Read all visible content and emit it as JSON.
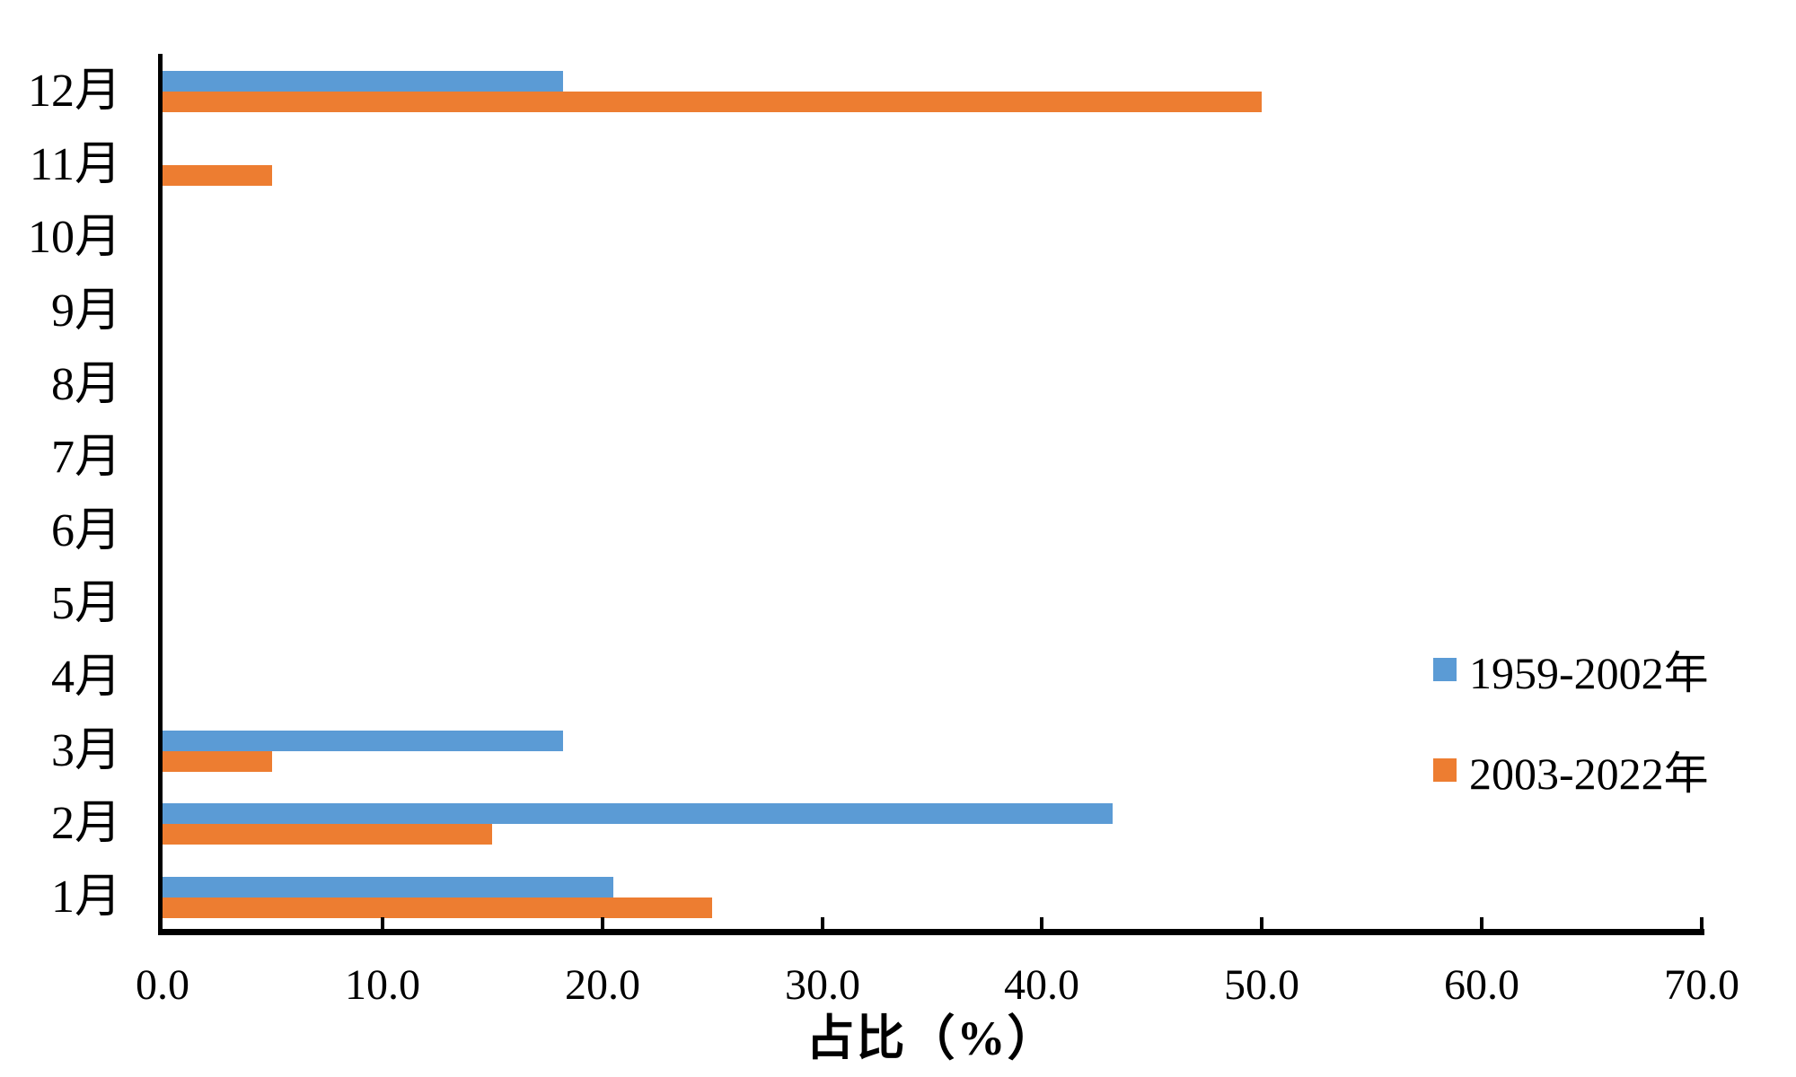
{
  "chart_data": {
    "type": "bar",
    "orientation": "horizontal",
    "title": "",
    "xlabel": "占比（%）",
    "ylabel": "",
    "xlim": [
      0,
      70
    ],
    "x_ticks": [
      "0.0",
      "10.0",
      "20.0",
      "30.0",
      "40.0",
      "50.0",
      "60.0",
      "70.0"
    ],
    "x_tick_values": [
      0,
      10,
      20,
      30,
      40,
      50,
      60,
      70
    ],
    "grid": false,
    "legend_position": "right-middle",
    "categories": [
      "1月",
      "2月",
      "3月",
      "4月",
      "5月",
      "6月",
      "7月",
      "8月",
      "9月",
      "10月",
      "11月",
      "12月"
    ],
    "series": [
      {
        "name": "1959-2002年",
        "color": "#5B9BD5",
        "values": [
          20.5,
          43.2,
          18.2,
          0,
          0,
          0,
          0,
          0,
          0,
          0,
          0,
          18.2
        ]
      },
      {
        "name": "2003-2022年",
        "color": "#ED7D31",
        "values": [
          25.0,
          15.0,
          5.0,
          0,
          0,
          0,
          0,
          0,
          0,
          0,
          5.0,
          50.0
        ]
      }
    ]
  }
}
